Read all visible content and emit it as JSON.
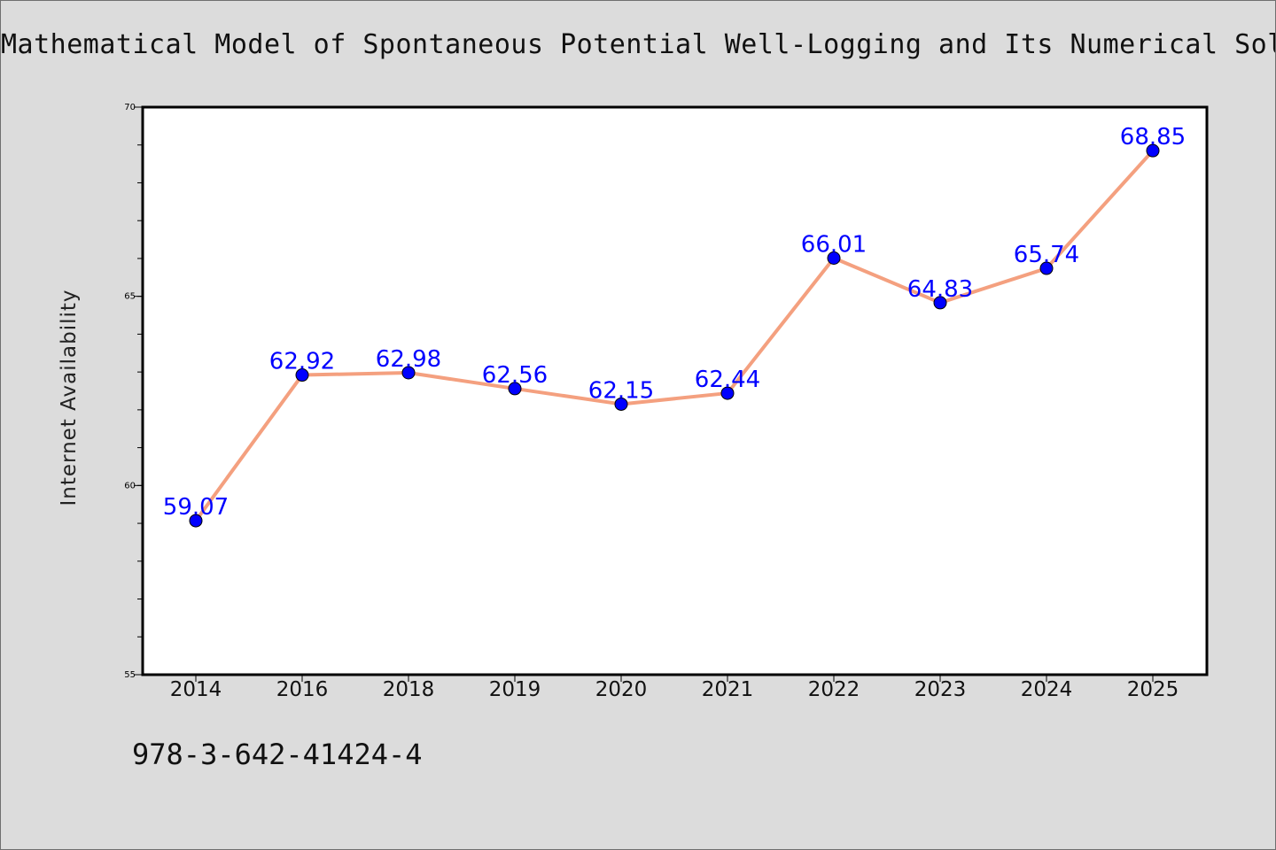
{
  "chart_title": "Mathematical Model of Spontaneous Potential Well-Logging and Its Numerical Solut",
  "footer_text": "978-3-642-41424-4",
  "colors": {
    "background": "#dcdcdc",
    "plot_background": "#ffffff",
    "line": "#f4a07f",
    "marker": "#0000ff",
    "data_label": "#0000ff"
  },
  "chart_data": {
    "type": "line",
    "categories": [
      "2014",
      "2016",
      "2018",
      "2019",
      "2020",
      "2021",
      "2022",
      "2023",
      "2024",
      "2025"
    ],
    "series": [
      {
        "values": [
          59.07,
          62.92,
          62.98,
          62.56,
          62.15,
          62.44,
          66.01,
          64.83,
          65.74,
          68.85
        ]
      }
    ],
    "data_labels": [
      "59.07",
      "62.92",
      "62.98",
      "62.56",
      "62.15",
      "62.44",
      "66.01",
      "64.83",
      "65.74",
      "68.85"
    ],
    "xlabel": "",
    "ylabel": "Internet Availability",
    "ylim": [
      55,
      70
    ],
    "y_ticks": [
      "55",
      "60",
      "65",
      "70"
    ],
    "grid": false,
    "legend": "none"
  }
}
